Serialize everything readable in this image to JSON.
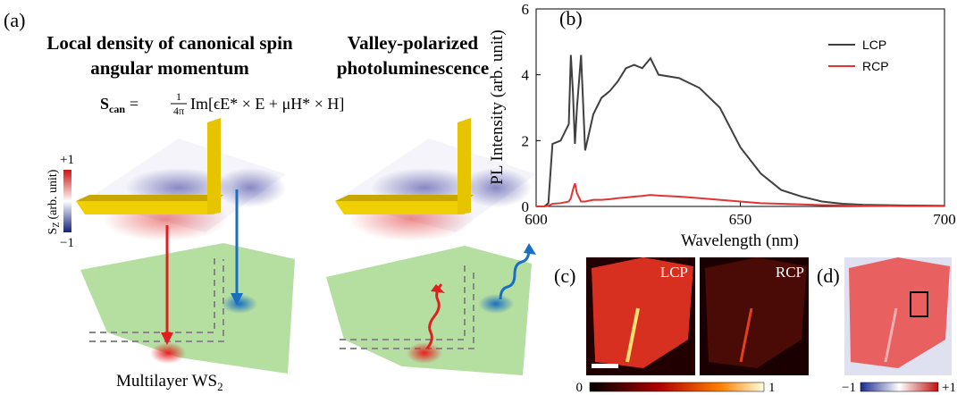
{
  "panel_labels": [
    "(a)",
    "(b)",
    "(c)",
    "(d)"
  ],
  "panel_a": {
    "title_left": [
      "Local density of canonical spin",
      "angular momentum"
    ],
    "title_right": [
      "Valley-polarized",
      "photoluminescence"
    ],
    "equation": {
      "lhs": "S",
      "lhs_sub": "can",
      "eq": "=",
      "frac_num": "1",
      "frac_den": "4π",
      "rhs": "Im[ϵE* × E + μH* × H]"
    },
    "colorbar": {
      "max": "+1",
      "min": "−1",
      "label": "S",
      "label_sub": "Z",
      "label_unit": "(arb. unit)"
    },
    "material": "Multilayer WS",
    "material_sub": "2"
  },
  "chart_data": {
    "type": "line",
    "xlabel": "Wavelength (nm)",
    "ylabel": "PL Intensity (arb. unit)",
    "x": [
      600,
      602,
      603,
      604,
      606,
      608,
      608.5,
      609,
      609.5,
      610,
      611,
      612,
      614,
      616,
      618,
      620,
      622,
      624,
      626,
      628,
      630,
      635,
      640,
      645,
      650,
      655,
      660,
      665,
      670,
      675,
      680,
      690,
      700
    ],
    "series": [
      {
        "name": "LCP",
        "color": "#404040",
        "values": [
          0,
          0,
          0.1,
          1.9,
          2.0,
          2.5,
          4.6,
          3.5,
          1.9,
          3.0,
          4.6,
          1.7,
          2.8,
          3.3,
          3.5,
          3.8,
          4.2,
          4.3,
          4.2,
          4.5,
          4.0,
          3.9,
          3.6,
          3.0,
          1.8,
          1.0,
          0.5,
          0.3,
          0.15,
          0.08,
          0.05,
          0.03,
          0.02
        ]
      },
      {
        "name": "RCP",
        "color": "#e03535",
        "values": [
          0,
          0,
          0.02,
          0.08,
          0.1,
          0.15,
          0.25,
          0.5,
          0.7,
          0.4,
          0.15,
          0.15,
          0.2,
          0.2,
          0.22,
          0.25,
          0.27,
          0.3,
          0.32,
          0.35,
          0.33,
          0.3,
          0.25,
          0.2,
          0.15,
          0.1,
          0.08,
          0.06,
          0.04,
          0.03,
          0.02,
          0.01,
          0.01
        ]
      }
    ],
    "xlim": [
      600,
      700
    ],
    "xticks": [
      600,
      650,
      700
    ],
    "ylim": [
      0,
      6
    ],
    "yticks": [
      0,
      2,
      4,
      6
    ],
    "legend": "upper right"
  },
  "panel_c": {
    "labels": [
      "LCP",
      "RCP"
    ],
    "colorbar": {
      "min": "0",
      "max": "1"
    }
  },
  "panel_d": {
    "colorbar": {
      "min": "−1",
      "max": "+1"
    }
  }
}
